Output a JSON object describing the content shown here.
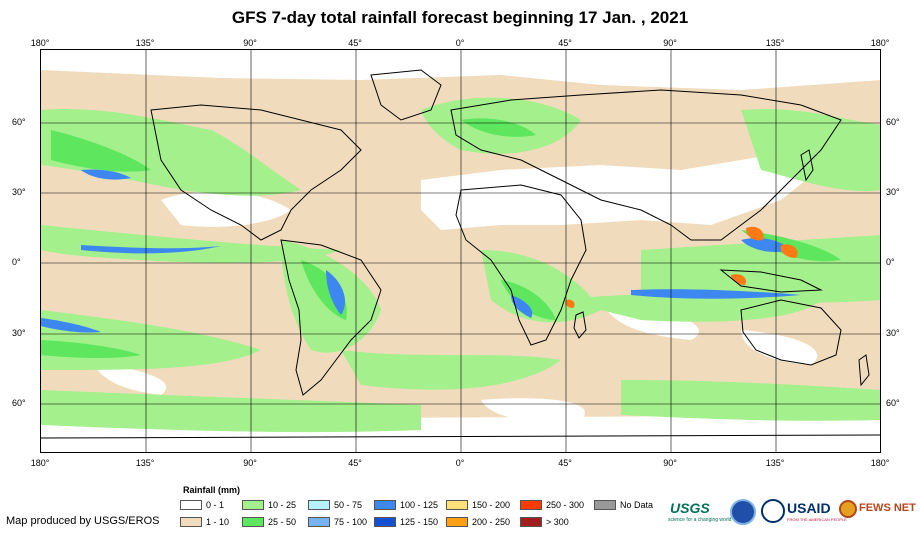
{
  "title": "GFS 7-day total rainfall forecast beginning 17 Jan. , 2021",
  "map": {
    "longitude_ticks": [
      "180°",
      "135°",
      "90°",
      "45°",
      "0°",
      "45°",
      "90°",
      "135°",
      "180°"
    ],
    "latitude_ticks": [
      "60°",
      "30°",
      "0°",
      "30°",
      "60°"
    ],
    "colors": {
      "ocean_dry": "#ffffff",
      "light_rain": "#f0dcbd",
      "moderate_rain": "#a3f08c",
      "heavy_rain": "#5ee65e",
      "very_heavy": "#3c87f0",
      "extreme": "#ff7a14",
      "border": "#000000",
      "grid": "#000000"
    }
  },
  "legend": {
    "title": "Rainfall (mm)",
    "items": [
      {
        "label": "0 - 1",
        "color": "#ffffff"
      },
      {
        "label": "1 - 10",
        "color": "#f0dcbd"
      },
      {
        "label": "10 - 25",
        "color": "#a3f08c"
      },
      {
        "label": "25 - 50",
        "color": "#5ee65e"
      },
      {
        "label": "50 - 75",
        "color": "#b6f0fa"
      },
      {
        "label": "75 - 100",
        "color": "#78b4f5"
      },
      {
        "label": "100 - 125",
        "color": "#3c87f0"
      },
      {
        "label": "125 - 150",
        "color": "#1450d2"
      },
      {
        "label": "150 - 200",
        "color": "#ffe178"
      },
      {
        "label": "200 - 250",
        "color": "#ffa014"
      },
      {
        "label": "250 - 300",
        "color": "#ff3c00"
      },
      {
        "label": "> 300",
        "color": "#a01e1e"
      },
      {
        "label": "No Data",
        "color": "#999999"
      }
    ]
  },
  "credit": "Map produced by USGS/EROS",
  "logos": {
    "usgs": "USGS",
    "usgs_tagline": "science for a changing world",
    "usaid": "USAID",
    "usaid_tagline": "FROM THE AMERICAN PEOPLE",
    "fewsnet": "FEWS NET"
  }
}
